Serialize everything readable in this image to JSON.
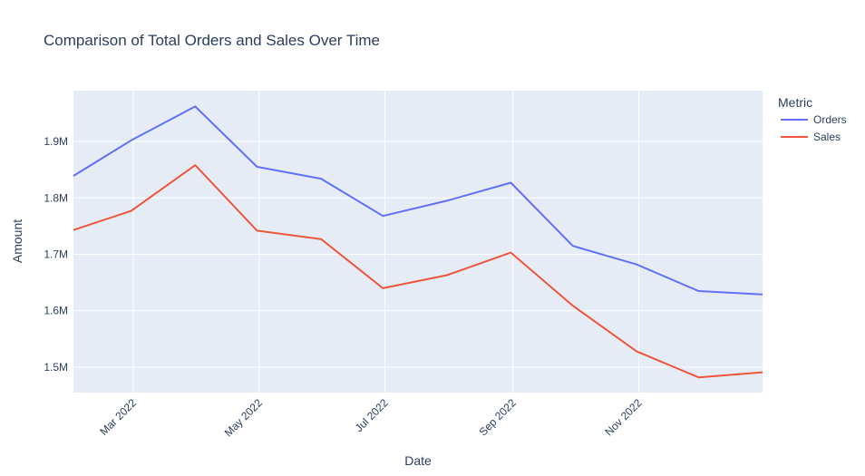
{
  "chart_data": {
    "type": "line",
    "title": "Comparison of Total Orders and Sales Over Time",
    "xlabel": "Date",
    "ylabel": "Amount",
    "legend_title": "Metric",
    "legend_position": "top-right",
    "grid": true,
    "x": [
      "2022-01-31",
      "2022-02-28",
      "2022-03-31",
      "2022-04-30",
      "2022-05-31",
      "2022-06-30",
      "2022-07-31",
      "2022-08-31",
      "2022-09-30",
      "2022-10-31",
      "2022-11-30",
      "2022-12-31"
    ],
    "x_ticks": [
      {
        "date": "2022-03-01",
        "label": "Mar 2022"
      },
      {
        "date": "2022-05-01",
        "label": "May 2022"
      },
      {
        "date": "2022-07-01",
        "label": "Jul 2022"
      },
      {
        "date": "2022-09-01",
        "label": "Sep 2022"
      },
      {
        "date": "2022-11-01",
        "label": "Nov 2022"
      }
    ],
    "y_ticks": [
      {
        "value": 1500000,
        "label": "1.5M"
      },
      {
        "value": 1600000,
        "label": "1.6M"
      },
      {
        "value": 1700000,
        "label": "1.7M"
      },
      {
        "value": 1800000,
        "label": "1.8M"
      },
      {
        "value": 1900000,
        "label": "1.9M"
      }
    ],
    "xlim": [
      "2022-01-31",
      "2022-12-31"
    ],
    "ylim": [
      1455000,
      1990000
    ],
    "series": [
      {
        "name": "Orders",
        "color": "#636efa",
        "values": [
          1839000,
          1902000,
          1962000,
          1855000,
          1834000,
          1768000,
          1795000,
          1827000,
          1715000,
          1682000,
          1635000,
          1629000
        ]
      },
      {
        "name": "Sales",
        "color": "#ef553b",
        "values": [
          1743000,
          1777000,
          1858000,
          1742000,
          1727000,
          1640000,
          1663000,
          1703000,
          1609000,
          1528000,
          1482000,
          1491000
        ]
      }
    ],
    "colors": {
      "plot_bg": "#e5ecf6",
      "grid": "#ffffff",
      "text": "#2a3f5f"
    }
  }
}
